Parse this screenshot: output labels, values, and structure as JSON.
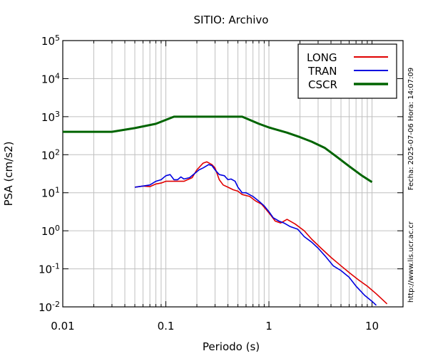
{
  "chart_data": {
    "type": "line",
    "title": "SITIO: Archivo",
    "xlabel": "Periodo (s)",
    "ylabel": "PSA (cm/s2)",
    "x_scale": "log",
    "y_scale": "log",
    "xlim": [
      0.01,
      20
    ],
    "ylim": [
      0.01,
      100000
    ],
    "grid": true,
    "legend_position": "top-right",
    "x_ticks": [
      {
        "value": 0.01,
        "label": "0.01"
      },
      {
        "value": 0.1,
        "label": "0.1"
      },
      {
        "value": 1,
        "label": "1"
      },
      {
        "value": 10,
        "label": "10"
      }
    ],
    "y_ticks": [
      {
        "value": 0.01,
        "base": "10",
        "exp": "-2"
      },
      {
        "value": 0.1,
        "base": "10",
        "exp": "-1"
      },
      {
        "value": 1,
        "base": "10",
        "exp": "0"
      },
      {
        "value": 10,
        "base": "10",
        "exp": "1"
      },
      {
        "value": 100,
        "base": "10",
        "exp": "2"
      },
      {
        "value": 1000,
        "base": "10",
        "exp": "3"
      },
      {
        "value": 10000,
        "base": "10",
        "exp": "4"
      },
      {
        "value": 100000,
        "base": "10",
        "exp": "5"
      }
    ],
    "side_text_date": "Fecha: 2025-07-06  Hora: 14:07:09",
    "side_text_url": "http://www.lis.ucr.ac.cr",
    "series": [
      {
        "name": "LONG",
        "color": "#e00000",
        "points": [
          [
            0.05,
            14
          ],
          [
            0.06,
            15
          ],
          [
            0.07,
            14.5
          ],
          [
            0.08,
            17
          ],
          [
            0.09,
            18
          ],
          [
            0.1,
            20
          ],
          [
            0.12,
            20
          ],
          [
            0.15,
            20
          ],
          [
            0.18,
            25
          ],
          [
            0.2,
            40
          ],
          [
            0.23,
            60
          ],
          [
            0.25,
            65
          ],
          [
            0.28,
            55
          ],
          [
            0.3,
            45
          ],
          [
            0.33,
            22
          ],
          [
            0.36,
            16
          ],
          [
            0.4,
            14
          ],
          [
            0.45,
            12
          ],
          [
            0.5,
            11
          ],
          [
            0.55,
            9
          ],
          [
            0.65,
            8
          ],
          [
            0.75,
            6
          ],
          [
            0.85,
            5
          ],
          [
            0.95,
            3.5
          ],
          [
            1.05,
            2.5
          ],
          [
            1.15,
            1.8
          ],
          [
            1.3,
            1.6
          ],
          [
            1.5,
            2
          ],
          [
            1.8,
            1.5
          ],
          [
            2.2,
            1
          ],
          [
            2.6,
            0.6
          ],
          [
            3.2,
            0.35
          ],
          [
            4,
            0.2
          ],
          [
            5,
            0.12
          ],
          [
            6,
            0.08
          ],
          [
            7.5,
            0.05
          ],
          [
            9,
            0.035
          ],
          [
            11,
            0.022
          ],
          [
            14,
            0.012
          ]
        ]
      },
      {
        "name": "TRAN",
        "color": "#0000e0",
        "points": [
          [
            0.05,
            14
          ],
          [
            0.06,
            15
          ],
          [
            0.07,
            16
          ],
          [
            0.08,
            20
          ],
          [
            0.09,
            22
          ],
          [
            0.1,
            28
          ],
          [
            0.11,
            30
          ],
          [
            0.12,
            22
          ],
          [
            0.13,
            22
          ],
          [
            0.14,
            26
          ],
          [
            0.15,
            23
          ],
          [
            0.17,
            25
          ],
          [
            0.19,
            32
          ],
          [
            0.21,
            40
          ],
          [
            0.23,
            45
          ],
          [
            0.26,
            55
          ],
          [
            0.28,
            52
          ],
          [
            0.3,
            40
          ],
          [
            0.33,
            30
          ],
          [
            0.37,
            28
          ],
          [
            0.4,
            22
          ],
          [
            0.43,
            23
          ],
          [
            0.47,
            20
          ],
          [
            0.5,
            14
          ],
          [
            0.55,
            10
          ],
          [
            0.6,
            10
          ],
          [
            0.7,
            8
          ],
          [
            0.8,
            6
          ],
          [
            0.9,
            4.5
          ],
          [
            1,
            3.2
          ],
          [
            1.1,
            2.2
          ],
          [
            1.25,
            1.8
          ],
          [
            1.4,
            1.6
          ],
          [
            1.6,
            1.3
          ],
          [
            1.9,
            1.1
          ],
          [
            2.2,
            0.7
          ],
          [
            2.6,
            0.5
          ],
          [
            3,
            0.35
          ],
          [
            3.5,
            0.22
          ],
          [
            4.2,
            0.12
          ],
          [
            5,
            0.09
          ],
          [
            6,
            0.06
          ],
          [
            7,
            0.035
          ],
          [
            8.5,
            0.02
          ],
          [
            10,
            0.014
          ],
          [
            11,
            0.011
          ]
        ]
      },
      {
        "name": "CSCR",
        "color": "#006400",
        "points": [
          [
            0.01,
            400
          ],
          [
            0.03,
            400
          ],
          [
            0.05,
            500
          ],
          [
            0.08,
            650
          ],
          [
            0.12,
            1000
          ],
          [
            0.55,
            1000
          ],
          [
            0.8,
            650
          ],
          [
            1,
            520
          ],
          [
            1.5,
            380
          ],
          [
            2,
            290
          ],
          [
            2.6,
            220
          ],
          [
            3.5,
            150
          ],
          [
            4.5,
            90
          ],
          [
            6,
            50
          ],
          [
            8,
            28
          ],
          [
            10,
            19
          ]
        ]
      }
    ]
  }
}
